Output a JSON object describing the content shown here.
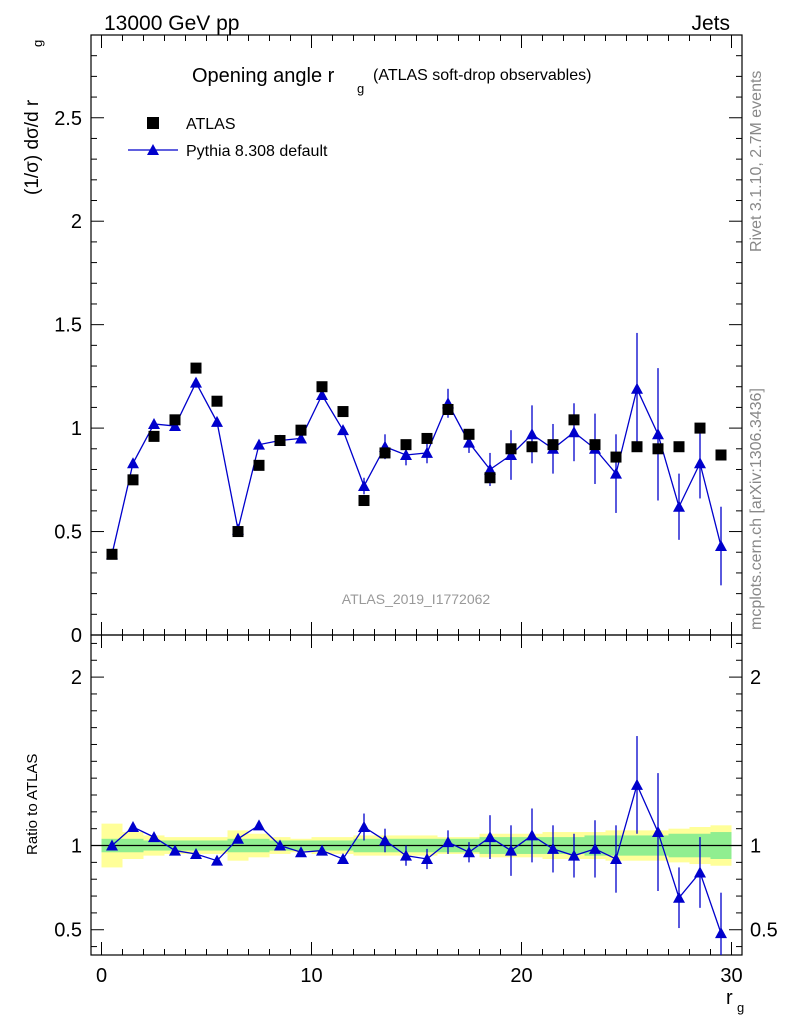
{
  "header": {
    "left": "13000 GeV pp",
    "right": "Jets"
  },
  "watermark": "ATLAS_2019_I1772062",
  "side_texts": {
    "rivet": "Rivet 3.1.10,  2.7M events",
    "mcplots": "mcplots.cern.ch [arXiv:1306.3436]"
  },
  "colors": {
    "mc": "#0000cc",
    "data": "#000000",
    "band_inner": "#90ee90",
    "band_outer": "#ffff99"
  },
  "chart_data": [
    {
      "type": "scatter",
      "title_main": "Opening angle r",
      "title_sub": "g",
      "title_rest": "(ATLAS soft-drop observables)",
      "ylabel_main": "(1/σ) dσ/d r",
      "ylabel_sub": "g",
      "xlim": [
        -0.5,
        30.5
      ],
      "ylim": [
        0,
        2.9
      ],
      "yticks": [
        0,
        0.5,
        1,
        1.5,
        2,
        2.5
      ],
      "ytick_labels": [
        "0",
        "0.5",
        "1",
        "1.5",
        "2",
        "2.5"
      ],
      "legend_position": "top-left",
      "series": [
        {
          "name": "ATLAS",
          "marker": "square",
          "x": [
            0.5,
            1.5,
            2.5,
            3.5,
            4.5,
            5.5,
            6.5,
            7.5,
            8.5,
            9.5,
            10.5,
            11.5,
            12.5,
            13.5,
            14.5,
            15.5,
            16.5,
            17.5,
            18.5,
            19.5,
            20.5,
            21.5,
            22.5,
            23.5,
            24.5,
            25.5,
            26.5,
            27.5,
            28.5,
            29.5
          ],
          "y": [
            0.39,
            0.75,
            0.96,
            1.04,
            1.29,
            1.13,
            0.5,
            0.82,
            0.94,
            0.99,
            1.2,
            1.08,
            0.65,
            0.88,
            0.92,
            0.95,
            1.09,
            0.97,
            0.76,
            0.9,
            0.91,
            0.92,
            1.04,
            0.92,
            0.86,
            0.91,
            0.9,
            0.91,
            1.0,
            0.87
          ]
        },
        {
          "name": "Pythia 8.308 default",
          "marker": "triangle",
          "x": [
            0.5,
            1.5,
            2.5,
            3.5,
            4.5,
            5.5,
            6.5,
            7.5,
            8.5,
            9.5,
            10.5,
            11.5,
            12.5,
            13.5,
            14.5,
            15.5,
            16.5,
            17.5,
            18.5,
            19.5,
            20.5,
            21.5,
            22.5,
            23.5,
            24.5,
            25.5,
            26.5,
            27.5,
            28.5,
            29.5
          ],
          "y": [
            0.39,
            0.83,
            1.02,
            1.01,
            1.22,
            1.03,
            0.51,
            0.92,
            0.94,
            0.95,
            1.16,
            0.99,
            0.72,
            0.91,
            0.87,
            0.88,
            1.12,
            0.93,
            0.8,
            0.87,
            0.97,
            0.9,
            0.98,
            0.9,
            0.78,
            1.19,
            0.97,
            0.62,
            0.83,
            0.43
          ],
          "yerr": [
            0,
            0,
            0,
            0,
            0,
            0,
            0,
            0,
            0,
            0,
            0,
            0,
            0.04,
            0.06,
            0.05,
            0.05,
            0.07,
            0.05,
            0.08,
            0.12,
            0.14,
            0.12,
            0.14,
            0.17,
            0.19,
            0.27,
            0.32,
            0.16,
            0.17,
            0.19
          ]
        }
      ]
    },
    {
      "type": "scatter",
      "ylabel": "Ratio to ATLAS",
      "xlabel_main": "r",
      "xlabel_sub": "g",
      "xlim": [
        -0.5,
        30.5
      ],
      "ylim": [
        0.35,
        2.25
      ],
      "yticks": [
        0.5,
        1,
        2
      ],
      "ytick_labels": [
        "0.5",
        "1",
        "2"
      ],
      "xticks": [
        0,
        10,
        20,
        30
      ],
      "xtick_labels": [
        "0",
        "10",
        "20",
        "30"
      ],
      "series": [
        {
          "name": "Pythia 8.308 default",
          "marker": "triangle",
          "x": [
            0.5,
            1.5,
            2.5,
            3.5,
            4.5,
            5.5,
            6.5,
            7.5,
            8.5,
            9.5,
            10.5,
            11.5,
            12.5,
            13.5,
            14.5,
            15.5,
            16.5,
            17.5,
            18.5,
            19.5,
            20.5,
            21.5,
            22.5,
            23.5,
            24.5,
            25.5,
            26.5,
            27.5,
            28.5,
            29.5
          ],
          "y": [
            1.0,
            1.11,
            1.05,
            0.97,
            0.95,
            0.91,
            1.04,
            1.12,
            1.0,
            0.96,
            0.97,
            0.92,
            1.11,
            1.03,
            0.94,
            0.92,
            1.02,
            0.96,
            1.05,
            0.97,
            1.06,
            0.98,
            0.94,
            0.98,
            0.92,
            1.36,
            1.08,
            0.69,
            0.84,
            0.48
          ],
          "yerr": [
            0,
            0,
            0,
            0,
            0,
            0,
            0,
            0,
            0,
            0,
            0,
            0,
            0.08,
            0.07,
            0.06,
            0.06,
            0.07,
            0.06,
            0.13,
            0.15,
            0.16,
            0.14,
            0.13,
            0.17,
            0.2,
            0.29,
            0.35,
            0.18,
            0.21,
            0.24
          ]
        }
      ],
      "band_inner": [
        0.04,
        0.04,
        0.03,
        0.03,
        0.03,
        0.03,
        0.04,
        0.04,
        0.03,
        0.03,
        0.03,
        0.03,
        0.04,
        0.04,
        0.04,
        0.04,
        0.04,
        0.04,
        0.05,
        0.05,
        0.05,
        0.05,
        0.05,
        0.06,
        0.06,
        0.06,
        0.06,
        0.07,
        0.07,
        0.08
      ],
      "band_outer": [
        0.13,
        0.08,
        0.06,
        0.05,
        0.05,
        0.05,
        0.09,
        0.07,
        0.05,
        0.04,
        0.05,
        0.05,
        0.06,
        0.06,
        0.06,
        0.06,
        0.05,
        0.05,
        0.07,
        0.07,
        0.07,
        0.08,
        0.08,
        0.08,
        0.09,
        0.09,
        0.09,
        0.1,
        0.11,
        0.12
      ]
    }
  ]
}
